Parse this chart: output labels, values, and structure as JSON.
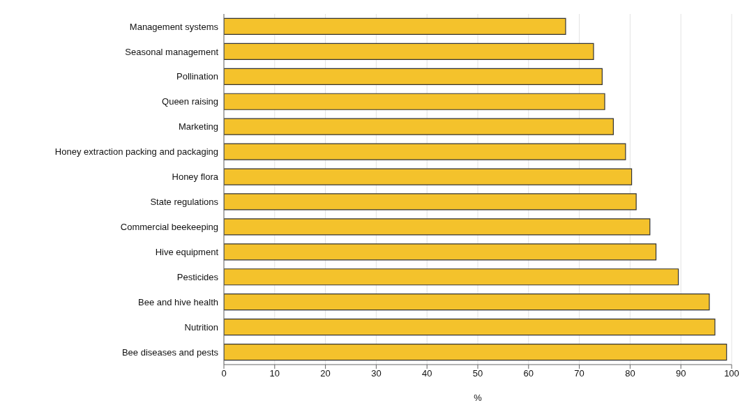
{
  "chart_data": {
    "type": "bar",
    "orientation": "horizontal",
    "xlabel": "%",
    "categories": [
      "Management systems",
      "Seasonal management",
      "Pollination",
      "Queen raising",
      "Marketing",
      "Honey extraction packing and packaging",
      "Honey flora",
      "State regulations",
      "Commercial beekeeping",
      "Hive equipment",
      "Pesticides",
      "Bee and hive health",
      "Nutrition",
      "Bee diseases and pests"
    ],
    "values": [
      67.3,
      72.8,
      74.5,
      75.0,
      76.7,
      79.1,
      80.3,
      81.2,
      83.9,
      85.1,
      89.5,
      95.6,
      96.7,
      99.0
    ],
    "color": "#f4c22c",
    "xlim": [
      0,
      100
    ],
    "xticks": [
      0,
      10,
      20,
      30,
      40,
      50,
      60,
      70,
      80,
      90,
      100
    ],
    "grid": "x",
    "legend": false
  }
}
